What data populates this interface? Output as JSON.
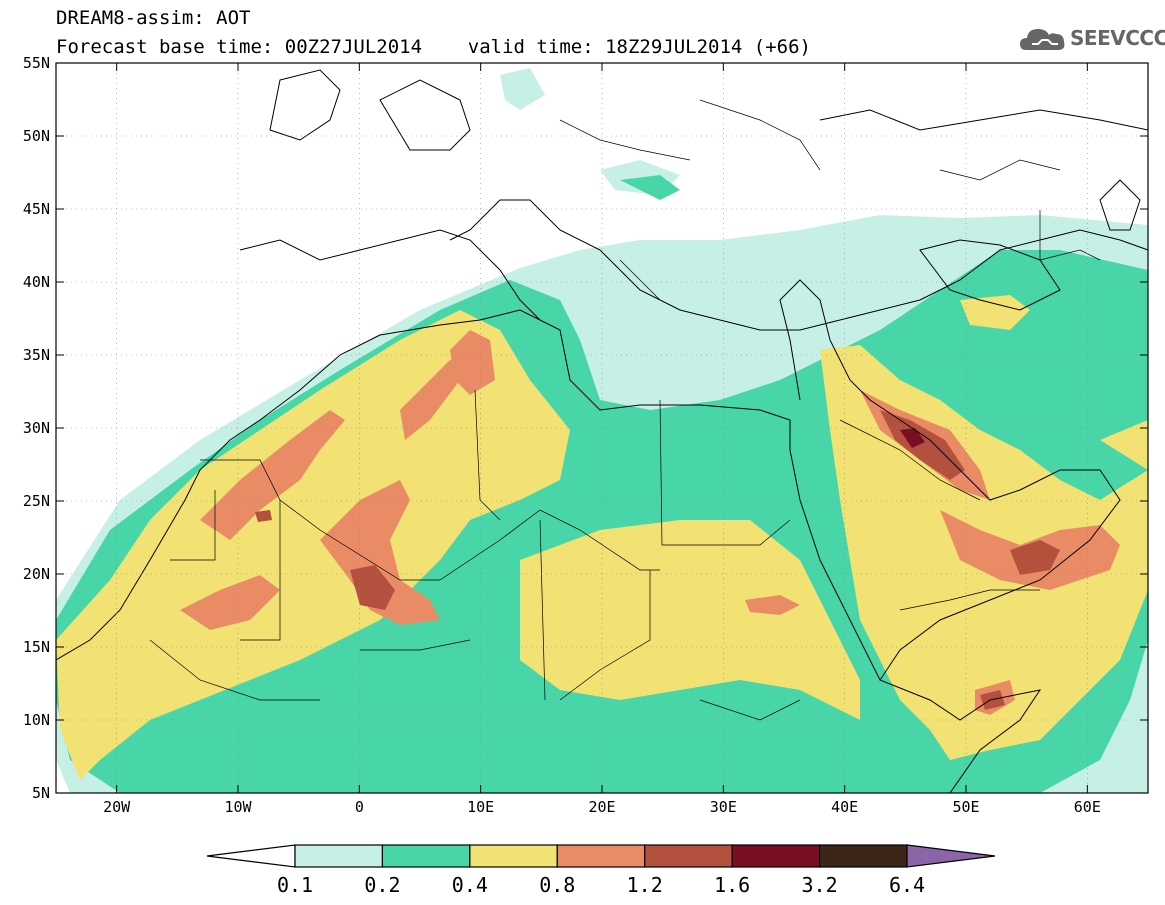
{
  "header": {
    "line1": "DREAM8-assim: AOT",
    "line2": "Forecast base time: 00Z27JUL2014    valid time: 18Z29JUL2014 (+66)",
    "logo_text": "SEEVCCC"
  },
  "map": {
    "lon_range": [
      -25,
      65
    ],
    "lat_range": [
      5,
      55
    ],
    "lat_labels": [
      "55N",
      "50N",
      "45N",
      "40N",
      "35N",
      "30N",
      "25N",
      "20N",
      "15N",
      "10N",
      "5N"
    ],
    "lon_labels": [
      "20W",
      "10W",
      "0",
      "10E",
      "20E",
      "30E",
      "40E",
      "50E",
      "60E"
    ],
    "field": "AOT",
    "region_labels": []
  },
  "colorbar": {
    "levels": [
      "0.1",
      "0.2",
      "0.4",
      "0.8",
      "1.2",
      "1.6",
      "3.2",
      "6.4"
    ],
    "colors": [
      "#ffffff",
      "#c6f0e6",
      "#48d6a8",
      "#f2e173",
      "#e98c66",
      "#b4503e",
      "#7a0e23",
      "#3d2617",
      "#8c64a8"
    ]
  }
}
